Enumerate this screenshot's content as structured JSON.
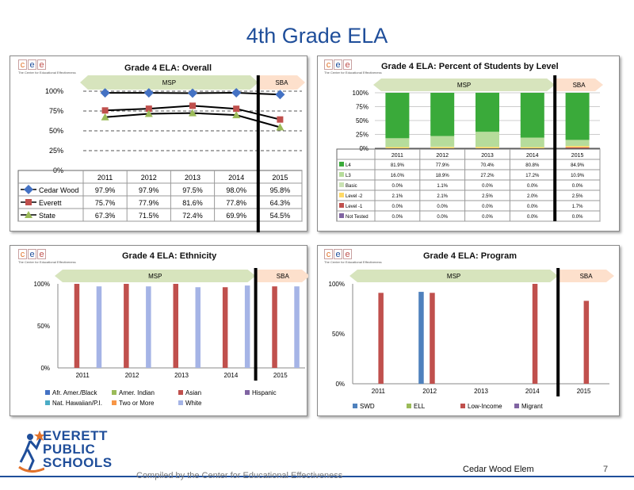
{
  "page": {
    "title": "4th Grade ELA"
  },
  "colors": {
    "title_blue": "#1f4e9a",
    "msp_arrow": "#d7e4bd",
    "sba_arrow": "#fde0cc",
    "cedar": "#4472c4",
    "everett": "#c0504d",
    "state": "#9bbb59"
  },
  "logo": {
    "letters": [
      "c",
      "e",
      "e"
    ],
    "subtitle": "The Center for Educational Effectiveness"
  },
  "footer": {
    "district_logo_lines": [
      "EVERETT",
      "PUBLIC",
      "SCHOOLS"
    ],
    "compiled_note": "Compiled by the Center for Educational Effectiveness",
    "school": "Cedar Wood Elem",
    "page_number": "7"
  },
  "chart_data": [
    {
      "id": "overall",
      "type": "line",
      "title": "Grade 4 ELA: Overall",
      "x": [
        "2011",
        "2012",
        "2013",
        "2014",
        "2015"
      ],
      "ylim": [
        0,
        100
      ],
      "y_ticks": [
        "0%",
        "25%",
        "50%",
        "75%",
        "100%"
      ],
      "test_bands": [
        {
          "label": "MSP",
          "years": [
            "2011",
            "2014"
          ]
        },
        {
          "label": "SBA",
          "years": [
            "2015"
          ]
        }
      ],
      "series": [
        {
          "name": "Cedar Wood",
          "values": [
            97.9,
            97.9,
            97.5,
            98.0,
            95.8
          ],
          "labels": [
            "97.9%",
            "97.9%",
            "97.5%",
            "98.0%",
            "95.8%"
          ],
          "color": "#4472c4",
          "marker": "diamond"
        },
        {
          "name": "Everett",
          "values": [
            75.7,
            77.9,
            81.6,
            77.8,
            64.3
          ],
          "labels": [
            "75.7%",
            "77.9%",
            "81.6%",
            "77.8%",
            "64.3%"
          ],
          "color": "#c0504d",
          "marker": "square"
        },
        {
          "name": "State",
          "values": [
            67.3,
            71.5,
            72.4,
            69.9,
            54.5
          ],
          "labels": [
            "67.3%",
            "71.5%",
            "72.4%",
            "69.9%",
            "54.5%"
          ],
          "color": "#9bbb59",
          "marker": "triangle"
        }
      ]
    },
    {
      "id": "levels",
      "type": "bar",
      "stacked": true,
      "title": "Grade 4 ELA: Percent of Students by Level",
      "x": [
        "2011",
        "2012",
        "2013",
        "2014",
        "2015"
      ],
      "ylim": [
        0,
        100
      ],
      "y_ticks": [
        "0%",
        "25%",
        "50%",
        "75%",
        "100%"
      ],
      "test_bands": [
        {
          "label": "MSP",
          "years": [
            "2011",
            "2014"
          ]
        },
        {
          "label": "SBA",
          "years": [
            "2015"
          ]
        }
      ],
      "series": [
        {
          "name": "L4",
          "values": [
            81.9,
            77.9,
            70.4,
            80.8,
            84.9
          ],
          "labels": [
            "81.9%",
            "77.9%",
            "70.4%",
            "80.8%",
            "84.9%"
          ],
          "color": "#3aaa3a"
        },
        {
          "name": "L3",
          "values": [
            16.0,
            18.9,
            27.2,
            17.2,
            10.9
          ],
          "labels": [
            "16.0%",
            "18.9%",
            "27.2%",
            "17.2%",
            "10.9%"
          ],
          "color": "#b6dc9b"
        },
        {
          "name": "Basic",
          "values": [
            0.0,
            1.1,
            0.0,
            0.0,
            0.0
          ],
          "labels": [
            "0.0%",
            "1.1%",
            "0.0%",
            "0.0%",
            "0.0%"
          ],
          "color": "#c9e2b3"
        },
        {
          "name": "Level -2",
          "values": [
            2.1,
            2.1,
            2.5,
            2.0,
            2.5
          ],
          "labels": [
            "2.1%",
            "2.1%",
            "2.5%",
            "2.0%",
            "2.5%"
          ],
          "color": "#ffd966"
        },
        {
          "name": "Level -1",
          "values": [
            0.0,
            0.0,
            0.0,
            0.0,
            1.7
          ],
          "labels": [
            "0.0%",
            "0.0%",
            "0.0%",
            "0.0%",
            "1.7%"
          ],
          "color": "#c0504d"
        },
        {
          "name": "Not Tested",
          "values": [
            0.0,
            0.0,
            0.0,
            0.0,
            0.0
          ],
          "labels": [
            "0.0%",
            "0.0%",
            "0.0%",
            "0.0%",
            "0.0%"
          ],
          "color": "#8064a2"
        }
      ]
    },
    {
      "id": "ethnicity",
      "type": "bar",
      "title": "Grade 4 ELA: Ethnicity",
      "x": [
        "2011",
        "2012",
        "2013",
        "2014",
        "2015"
      ],
      "ylim": [
        0,
        100
      ],
      "y_ticks": [
        "0%",
        "50%",
        "100%"
      ],
      "test_bands": [
        {
          "label": "MSP",
          "years": [
            "2011",
            "2014"
          ]
        },
        {
          "label": "SBA",
          "years": [
            "2015"
          ]
        }
      ],
      "series": [
        {
          "name": "Afr. Amer./Black",
          "values": [
            null,
            null,
            null,
            null,
            null
          ],
          "color": "#4472c4"
        },
        {
          "name": "Amer. Indian",
          "values": [
            null,
            null,
            null,
            null,
            null
          ],
          "color": "#9bbb59"
        },
        {
          "name": "Asian",
          "values": [
            100,
            100,
            100,
            96,
            97
          ],
          "color": "#c0504d"
        },
        {
          "name": "Hispanic",
          "values": [
            null,
            null,
            null,
            null,
            null
          ],
          "color": "#8064a2"
        },
        {
          "name": "Nat. Hawaiian/P.I.",
          "values": [
            null,
            null,
            null,
            null,
            null
          ],
          "color": "#4bacc6"
        },
        {
          "name": "Two or More",
          "values": [
            null,
            null,
            null,
            null,
            null
          ],
          "color": "#f79646"
        },
        {
          "name": "White",
          "values": [
            97,
            97,
            96,
            98,
            97
          ],
          "color": "#a5b4e6"
        }
      ]
    },
    {
      "id": "program",
      "type": "bar",
      "title": "Grade 4 ELA: Program",
      "x": [
        "2011",
        "2012",
        "2013",
        "2014",
        "2015"
      ],
      "ylim": [
        0,
        100
      ],
      "y_ticks": [
        "0%",
        "50%",
        "100%"
      ],
      "test_bands": [
        {
          "label": "MSP",
          "years": [
            "2011",
            "2014"
          ]
        },
        {
          "label": "SBA",
          "years": [
            "2015"
          ]
        }
      ],
      "series": [
        {
          "name": "SWD",
          "values": [
            null,
            92,
            null,
            null,
            null
          ],
          "color": "#4f81bd"
        },
        {
          "name": "ELL",
          "values": [
            null,
            null,
            null,
            null,
            null
          ],
          "color": "#9bbb59"
        },
        {
          "name": "Low-Income",
          "values": [
            91,
            91,
            null,
            100,
            83
          ],
          "color": "#c0504d"
        },
        {
          "name": "Migrant",
          "values": [
            null,
            null,
            null,
            null,
            null
          ],
          "color": "#8064a2"
        }
      ]
    }
  ]
}
